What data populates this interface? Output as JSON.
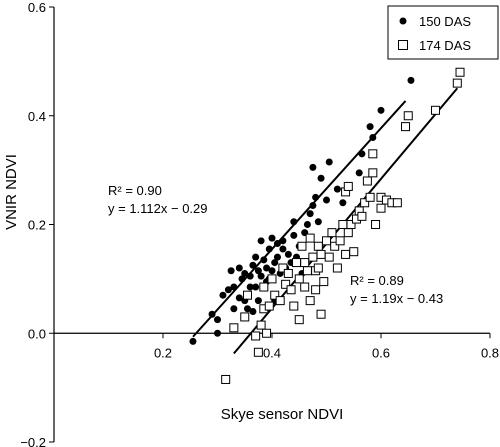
{
  "chart_data": {
    "type": "scatter",
    "xlabel": "Skye sensor NDVI",
    "ylabel": "VNIR NDVI",
    "xlim": [
      0.0,
      0.8
    ],
    "ylim": [
      -0.2,
      0.6
    ],
    "xticks": [
      "0.2",
      "0.4",
      "0.6",
      "0.8"
    ],
    "yticks": [
      "−0.2",
      "0.0",
      "0.2",
      "0.4",
      "0.6"
    ],
    "xtick_values": [
      0.2,
      0.4,
      0.6,
      0.8
    ],
    "ytick_values": [
      -0.2,
      0.0,
      0.2,
      0.4,
      0.6
    ],
    "grid": false,
    "legend_position": "top-right",
    "series": [
      {
        "name": "150 DAS",
        "marker": "filled-circle",
        "color": "#000000",
        "trendline": {
          "slope": 1.112,
          "intercept": -0.29,
          "x_range": [
            0.255,
            0.645
          ]
        },
        "annotation": {
          "r2": "R² = 0.90",
          "equation": "y = 1.112x − 0.29"
        },
        "points": [
          [
            0.255,
            -0.015
          ],
          [
            0.29,
            0.035
          ],
          [
            0.3,
            0.0
          ],
          [
            0.3,
            0.025
          ],
          [
            0.31,
            0.07
          ],
          [
            0.32,
            0.08
          ],
          [
            0.325,
            0.115
          ],
          [
            0.33,
            0.045
          ],
          [
            0.33,
            0.085
          ],
          [
            0.34,
            0.065
          ],
          [
            0.34,
            0.12
          ],
          [
            0.345,
            0.1
          ],
          [
            0.35,
            0.11
          ],
          [
            0.35,
            0.06
          ],
          [
            0.355,
            0.045
          ],
          [
            0.36,
            0.085
          ],
          [
            0.36,
            0.105
          ],
          [
            0.365,
            0.04
          ],
          [
            0.365,
            0.125
          ],
          [
            0.37,
            0.14
          ],
          [
            0.37,
            0.085
          ],
          [
            0.375,
            0.115
          ],
          [
            0.375,
            0.06
          ],
          [
            0.38,
            0.105
          ],
          [
            0.38,
            0.17
          ],
          [
            0.385,
            0.085
          ],
          [
            0.385,
            0.135
          ],
          [
            0.39,
            0.12
          ],
          [
            0.39,
            0.095
          ],
          [
            0.395,
            0.1
          ],
          [
            0.395,
            0.155
          ],
          [
            0.4,
            0.115
          ],
          [
            0.4,
            0.175
          ],
          [
            0.405,
            0.13
          ],
          [
            0.405,
            0.06
          ],
          [
            0.41,
            0.14
          ],
          [
            0.41,
            0.165
          ],
          [
            0.415,
            0.11
          ],
          [
            0.42,
            0.155
          ],
          [
            0.42,
            0.17
          ],
          [
            0.425,
            0.12
          ],
          [
            0.43,
            0.145
          ],
          [
            0.435,
            0.13
          ],
          [
            0.44,
            0.18
          ],
          [
            0.44,
            0.205
          ],
          [
            0.445,
            0.14
          ],
          [
            0.45,
            0.16
          ],
          [
            0.455,
            0.11
          ],
          [
            0.46,
            0.185
          ],
          [
            0.465,
            0.2
          ],
          [
            0.47,
            0.22
          ],
          [
            0.475,
            0.235
          ],
          [
            0.475,
            0.305
          ],
          [
            0.48,
            0.25
          ],
          [
            0.485,
            0.205
          ],
          [
            0.49,
            0.285
          ],
          [
            0.5,
            0.245
          ],
          [
            0.505,
            0.315
          ],
          [
            0.52,
            0.265
          ],
          [
            0.53,
            0.24
          ],
          [
            0.56,
            0.295
          ],
          [
            0.565,
            0.33
          ],
          [
            0.58,
            0.38
          ],
          [
            0.585,
            0.36
          ],
          [
            0.6,
            0.41
          ],
          [
            0.655,
            0.465
          ]
        ]
      },
      {
        "name": "174 DAS",
        "marker": "open-square",
        "color": "#000000",
        "trendline": {
          "slope": 1.19,
          "intercept": -0.43,
          "x_range": [
            0.33,
            0.74
          ]
        },
        "annotation": {
          "r2": "R² = 0.89",
          "equation": "y = 1.19x − 0.43"
        },
        "points": [
          [
            0.315,
            -0.085
          ],
          [
            0.33,
            0.01
          ],
          [
            0.35,
            0.03
          ],
          [
            0.355,
            0.07
          ],
          [
            0.37,
            -0.005
          ],
          [
            0.375,
            -0.035
          ],
          [
            0.38,
            0.015
          ],
          [
            0.385,
            0.045
          ],
          [
            0.385,
            0.085
          ],
          [
            0.39,
            0.0
          ],
          [
            0.395,
            0.05
          ],
          [
            0.4,
            0.1
          ],
          [
            0.405,
            0.07
          ],
          [
            0.415,
            0.06
          ],
          [
            0.42,
            0.12
          ],
          [
            0.425,
            0.09
          ],
          [
            0.43,
            0.11
          ],
          [
            0.435,
            0.08
          ],
          [
            0.44,
            0.05
          ],
          [
            0.445,
            0.13
          ],
          [
            0.45,
            0.025
          ],
          [
            0.45,
            0.1
          ],
          [
            0.455,
            0.16
          ],
          [
            0.46,
            0.13
          ],
          [
            0.46,
            0.085
          ],
          [
            0.465,
            0.115
          ],
          [
            0.47,
            0.175
          ],
          [
            0.47,
            0.06
          ],
          [
            0.475,
            0.14
          ],
          [
            0.48,
            0.08
          ],
          [
            0.48,
            0.115
          ],
          [
            0.485,
            0.12
          ],
          [
            0.485,
            0.16
          ],
          [
            0.49,
            0.035
          ],
          [
            0.49,
            0.145
          ],
          [
            0.495,
            0.095
          ],
          [
            0.5,
            0.17
          ],
          [
            0.505,
            0.14
          ],
          [
            0.51,
            0.185
          ],
          [
            0.515,
            0.16
          ],
          [
            0.52,
            0.12
          ],
          [
            0.525,
            0.17
          ],
          [
            0.53,
            0.2
          ],
          [
            0.535,
            0.145
          ],
          [
            0.535,
            0.26
          ],
          [
            0.54,
            0.27
          ],
          [
            0.54,
            0.185
          ],
          [
            0.545,
            0.2
          ],
          [
            0.55,
            0.15
          ],
          [
            0.555,
            0.21
          ],
          [
            0.56,
            0.225
          ],
          [
            0.565,
            0.215
          ],
          [
            0.57,
            0.24
          ],
          [
            0.575,
            0.28
          ],
          [
            0.58,
            0.25
          ],
          [
            0.585,
            0.295
          ],
          [
            0.585,
            0.33
          ],
          [
            0.59,
            0.2
          ],
          [
            0.6,
            0.23
          ],
          [
            0.6,
            0.25
          ],
          [
            0.61,
            0.245
          ],
          [
            0.62,
            0.24
          ],
          [
            0.63,
            0.24
          ],
          [
            0.645,
            0.38
          ],
          [
            0.65,
            0.4
          ],
          [
            0.7,
            0.41
          ],
          [
            0.74,
            0.46
          ],
          [
            0.745,
            0.48
          ]
        ]
      }
    ]
  }
}
